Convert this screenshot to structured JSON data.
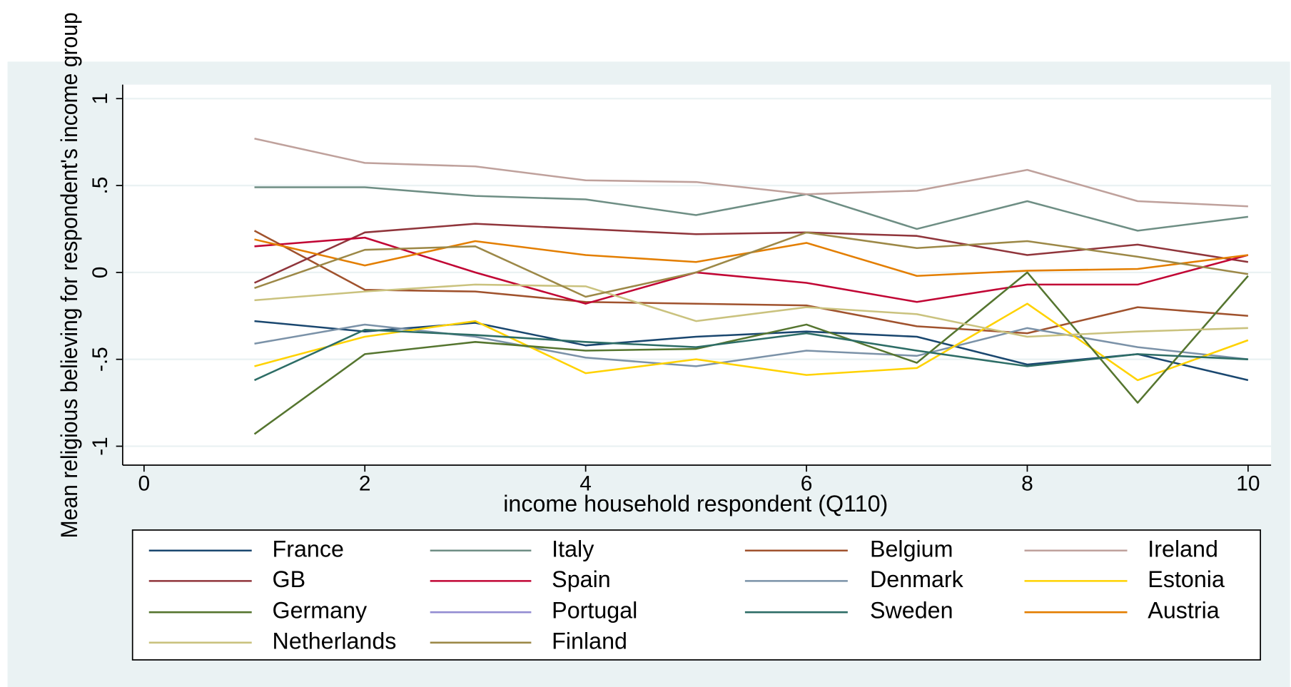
{
  "chart_data": {
    "type": "line",
    "x_label": "income household respondent (Q110)",
    "y_label": "Mean religious believing for respondent's income group",
    "x": [
      1,
      2,
      3,
      4,
      5,
      6,
      7,
      8,
      9,
      10
    ],
    "xlim": [
      0,
      10
    ],
    "xticks": [
      0,
      2,
      4,
      6,
      8,
      10
    ],
    "ylim": [
      -1,
      1
    ],
    "yticks": [
      -1,
      {
        "value": -0.5,
        "label": "-.5"
      },
      0,
      {
        "value": 0.5,
        "label": ".5"
      },
      1
    ],
    "grid": true,
    "series": [
      {
        "name": "France",
        "color": "#1a476f",
        "values": [
          -0.28,
          -0.34,
          -0.29,
          -0.42,
          -0.37,
          -0.34,
          -0.37,
          -0.53,
          -0.47,
          -0.62
        ]
      },
      {
        "name": "Italy",
        "color": "#6e8e84",
        "values": [
          0.49,
          0.49,
          0.44,
          0.42,
          0.33,
          0.45,
          0.25,
          0.41,
          0.24,
          0.32
        ]
      },
      {
        "name": "Belgium",
        "color": "#a0522d",
        "values": [
          0.24,
          -0.1,
          -0.11,
          -0.17,
          -0.18,
          -0.19,
          -0.31,
          -0.35,
          -0.2,
          -0.25
        ]
      },
      {
        "name": "Ireland",
        "color": "#bfa19c",
        "values": [
          0.77,
          0.63,
          0.61,
          0.53,
          0.52,
          0.45,
          0.47,
          0.59,
          0.41,
          0.38
        ]
      },
      {
        "name": "GB",
        "color": "#90353b",
        "values": [
          -0.06,
          0.23,
          0.28,
          0.25,
          0.22,
          0.23,
          0.21,
          0.1,
          0.16,
          0.06
        ]
      },
      {
        "name": "Spain",
        "color": "#c10534",
        "values": [
          0.15,
          0.2,
          0.0,
          -0.18,
          0.0,
          -0.06,
          -0.17,
          -0.07,
          -0.07,
          0.1
        ]
      },
      {
        "name": "Denmark",
        "color": "#7b92a8",
        "values": [
          -0.41,
          -0.3,
          -0.37,
          -0.49,
          -0.54,
          -0.45,
          -0.48,
          -0.32,
          -0.43,
          -0.5
        ]
      },
      {
        "name": "Estonia",
        "color": "#ffd200",
        "values": [
          -0.54,
          -0.37,
          -0.28,
          -0.58,
          -0.5,
          -0.59,
          -0.55,
          -0.18,
          -0.62,
          -0.39
        ]
      },
      {
        "name": "Germany",
        "color": "#55752f",
        "values": [
          -0.93,
          -0.47,
          -0.4,
          -0.45,
          -0.44,
          -0.3,
          -0.52,
          0.0,
          -0.75,
          -0.02
        ]
      },
      {
        "name": "Portugal",
        "color": "#938dd2",
        "values": [
          null,
          null,
          null,
          null,
          null,
          null,
          null,
          null,
          null,
          null
        ]
      },
      {
        "name": "Sweden",
        "color": "#2d6d66",
        "values": [
          -0.62,
          -0.33,
          -0.36,
          -0.4,
          -0.43,
          -0.35,
          -0.45,
          -0.54,
          -0.47,
          -0.5
        ]
      },
      {
        "name": "Austria",
        "color": "#e37e00",
        "values": [
          0.19,
          0.04,
          0.18,
          0.1,
          0.06,
          0.17,
          -0.02,
          0.01,
          0.02,
          0.1
        ]
      },
      {
        "name": "Netherlands",
        "color": "#cac27e",
        "values": [
          -0.16,
          -0.11,
          -0.07,
          -0.08,
          -0.28,
          -0.2,
          -0.24,
          -0.37,
          -0.34,
          -0.32
        ]
      },
      {
        "name": "Finland",
        "color": "#9c8847",
        "values": [
          -0.09,
          0.13,
          0.15,
          -0.14,
          0.0,
          0.23,
          0.14,
          0.18,
          0.09,
          -0.01
        ]
      }
    ]
  }
}
